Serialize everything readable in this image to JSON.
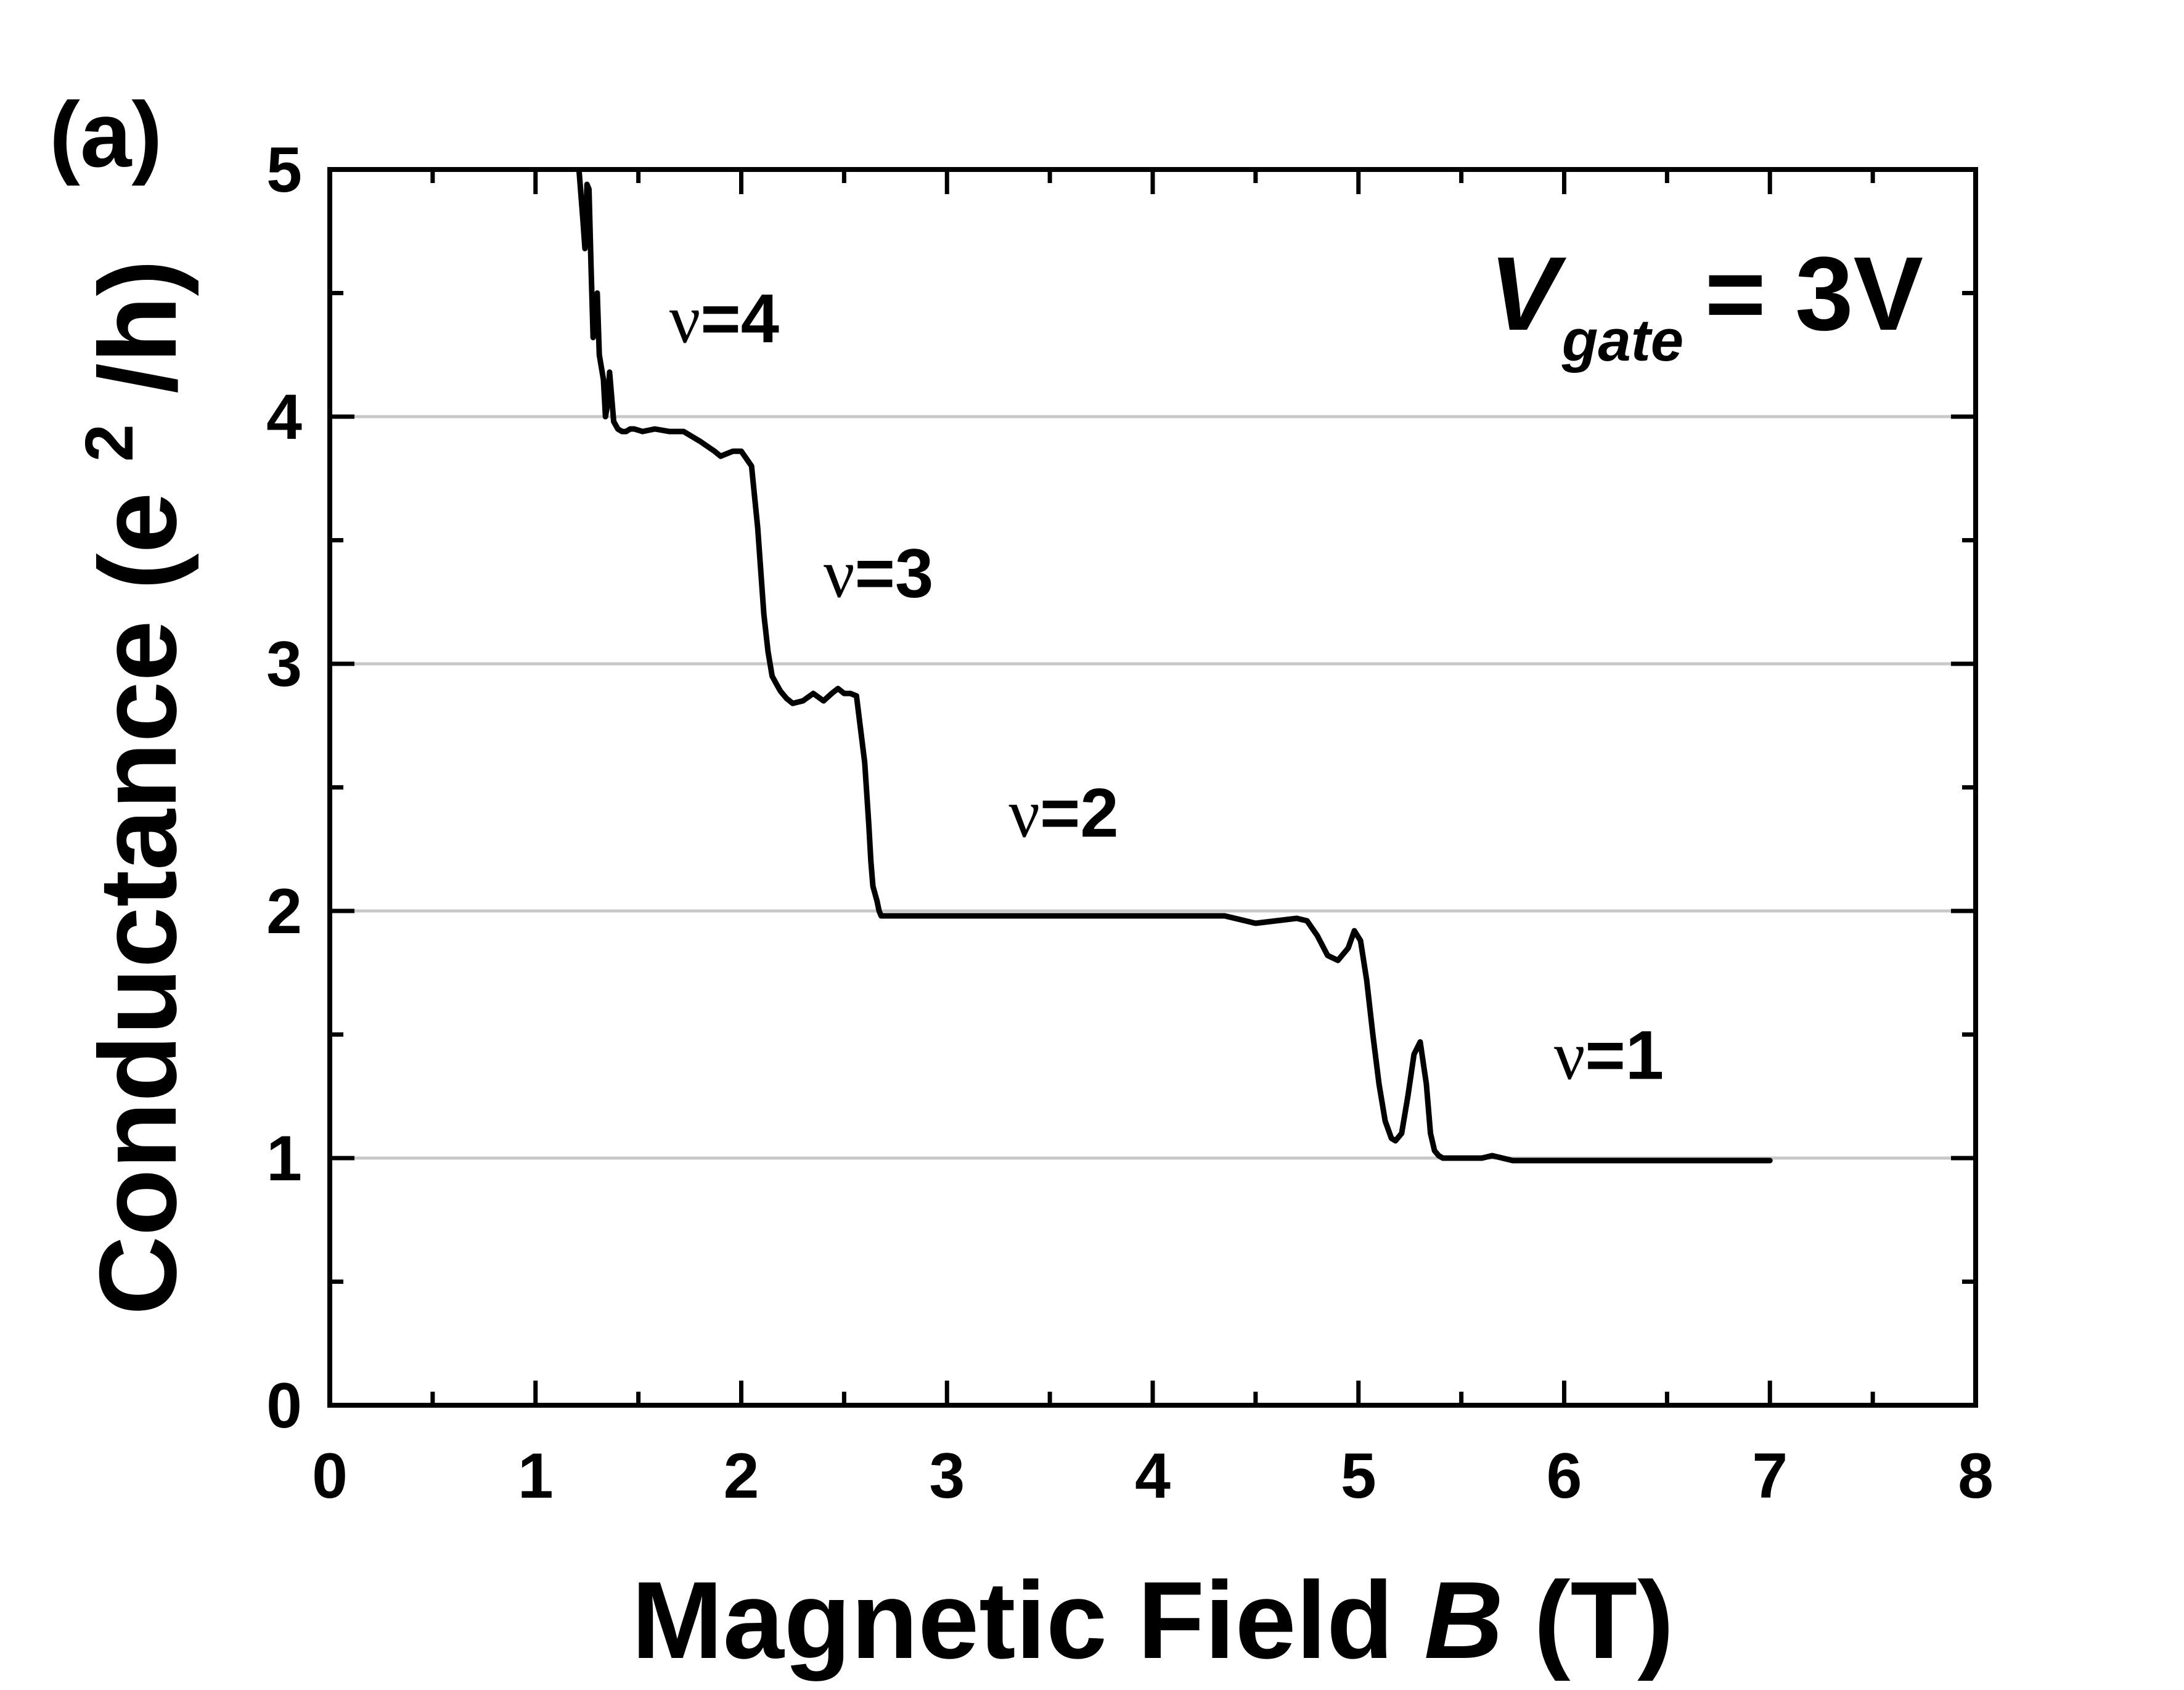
{
  "chart_data": {
    "type": "line",
    "panel_label": "(a)",
    "xlabel": "Magnetic Field",
    "xlabel_var": "B",
    "xlabel_unit": "(T)",
    "ylabel": "Conductance (e",
    "ylabel_sup": "2",
    "ylabel_end": "/h)",
    "xlim": [
      0,
      8
    ],
    "ylim": [
      0,
      5
    ],
    "xticks": [
      "0",
      "1",
      "2",
      "3",
      "4",
      "5",
      "6",
      "7",
      "8"
    ],
    "yticks": [
      "0",
      "1",
      "2",
      "3",
      "4",
      "5"
    ],
    "grid": "horizontal at integer conductance values",
    "colors": {
      "line": "#000000",
      "grid": "#c8c8c8",
      "frame": "#000000"
    },
    "condition": {
      "prefix": "V",
      "sub": "gate",
      "suffix": "= 3V"
    },
    "annotations": [
      {
        "greek": "ν",
        "text": "=4",
        "x": 1.65,
        "y": 4.3
      },
      {
        "greek": "ν",
        "text": "=3",
        "x": 2.4,
        "y": 3.27
      },
      {
        "greek": "ν",
        "text": "=2",
        "x": 3.3,
        "y": 2.3
      },
      {
        "greek": "ν",
        "text": "=1",
        "x": 5.95,
        "y": 1.32
      }
    ],
    "series": [
      {
        "x": [
          1.2,
          1.23,
          1.24,
          1.25,
          1.26,
          1.27,
          1.28,
          1.3,
          1.31,
          1.33,
          1.34,
          1.35,
          1.36,
          1.38,
          1.4,
          1.42,
          1.44,
          1.46,
          1.48,
          1.52,
          1.58,
          1.65,
          1.72,
          1.8,
          1.87,
          1.9,
          1.93,
          1.96,
          2.0,
          2.05,
          2.08,
          2.11,
          2.13,
          2.15,
          2.17,
          2.19,
          2.22,
          2.25,
          2.3,
          2.35,
          2.4,
          2.44,
          2.47,
          2.5,
          2.53,
          2.56,
          2.6,
          2.62,
          2.63,
          2.64,
          2.66,
          2.67,
          2.68,
          2.7,
          2.72,
          2.75,
          2.8,
          3.0,
          3.5,
          4.0,
          4.35,
          4.45,
          4.5,
          4.6,
          4.7,
          4.75,
          4.8,
          4.85,
          4.9,
          4.95,
          4.98,
          5.01,
          5.04,
          5.07,
          5.1,
          5.13,
          5.16,
          5.18,
          5.21,
          5.24,
          5.27,
          5.3,
          5.33,
          5.35,
          5.37,
          5.39,
          5.41,
          5.44,
          5.48,
          5.55,
          5.6,
          5.65,
          5.7,
          5.75,
          5.8,
          6.2,
          6.6,
          7.0
        ],
        "y": [
          5.12,
          4.8,
          4.68,
          4.94,
          4.92,
          4.6,
          4.32,
          4.5,
          4.25,
          4.15,
          4.0,
          4.05,
          4.18,
          3.98,
          3.95,
          3.94,
          3.94,
          3.95,
          3.95,
          3.94,
          3.95,
          3.94,
          3.94,
          3.9,
          3.86,
          3.84,
          3.85,
          3.86,
          3.86,
          3.8,
          3.55,
          3.2,
          3.05,
          2.95,
          2.92,
          2.89,
          2.86,
          2.84,
          2.85,
          2.88,
          2.85,
          2.88,
          2.9,
          2.88,
          2.88,
          2.87,
          2.6,
          2.35,
          2.2,
          2.1,
          2.04,
          2.0,
          1.98,
          1.98,
          1.98,
          1.98,
          1.98,
          1.98,
          1.98,
          1.98,
          1.98,
          1.96,
          1.95,
          1.96,
          1.97,
          1.96,
          1.9,
          1.82,
          1.8,
          1.85,
          1.92,
          1.88,
          1.72,
          1.5,
          1.3,
          1.15,
          1.08,
          1.07,
          1.1,
          1.25,
          1.42,
          1.47,
          1.3,
          1.1,
          1.03,
          1.01,
          1.0,
          1.0,
          1.0,
          1.0,
          1.0,
          1.01,
          1.0,
          0.99,
          0.99,
          0.99,
          0.99,
          0.99
        ]
      }
    ]
  }
}
